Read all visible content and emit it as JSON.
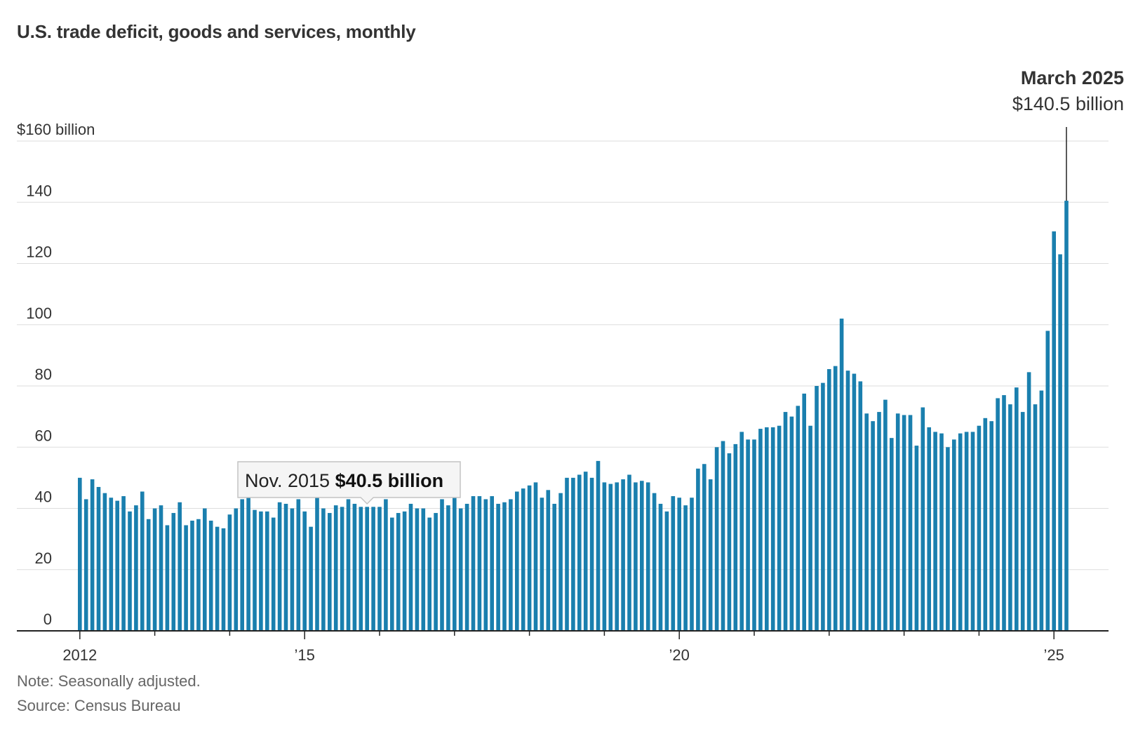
{
  "title": "U.S. trade deficit, goods and services, monthly",
  "note": "Note: Seasonally adjusted.",
  "source": "Source: Census Bureau",
  "colors": {
    "bar": "#1a7fae",
    "grid": "#dddddd",
    "axis": "#222222",
    "text": "#333333"
  },
  "chart_data": {
    "type": "bar",
    "title": "U.S. trade deficit, goods and services, monthly",
    "xlabel": "",
    "ylabel": "",
    "ylim": [
      0,
      160
    ],
    "yticks": [
      0,
      20,
      40,
      60,
      80,
      100,
      120,
      140,
      160
    ],
    "ytick_labels": [
      "0",
      "20",
      "40",
      "60",
      "80",
      "100",
      "120",
      "140",
      "$160 billion"
    ],
    "start": "2012-01",
    "xtick_labels": [
      {
        "index": 0,
        "label": "2012"
      },
      {
        "index": 36,
        "label": "’15"
      },
      {
        "index": 96,
        "label": "’20"
      },
      {
        "index": 156,
        "label": "’25"
      }
    ],
    "series": [
      {
        "name": "Trade deficit ($ billion)",
        "values": [
          50,
          43,
          49.5,
          47,
          45,
          43.5,
          42.5,
          44,
          39,
          41,
          45.5,
          36.5,
          40,
          41,
          34.5,
          38.5,
          42,
          34.5,
          36,
          36.5,
          40,
          36,
          34,
          33.5,
          38,
          40,
          43,
          43.5,
          39.5,
          39,
          39,
          37,
          42,
          41.5,
          40,
          43,
          39,
          34,
          44.5,
          40,
          38.5,
          41,
          40.5,
          43,
          41.5,
          40.5,
          40.5,
          40.5,
          40.5,
          43,
          37,
          38.5,
          39,
          41.5,
          40,
          40,
          37,
          38.5,
          43,
          41,
          43.5,
          40,
          41.5,
          44,
          44,
          43,
          44,
          41.5,
          42,
          43,
          45.5,
          46.5,
          47.5,
          48.5,
          43.5,
          46,
          41.5,
          45,
          50,
          50,
          51,
          52,
          50,
          55.5,
          48.5,
          48,
          48.5,
          49.5,
          51,
          48.5,
          49,
          48.5,
          45,
          41.5,
          39,
          44,
          43.5,
          41,
          43.5,
          53,
          54.5,
          49.5,
          60,
          62,
          58,
          61,
          65,
          62.5,
          62.5,
          66,
          66.5,
          66.5,
          67,
          71.5,
          70,
          73.5,
          77.5,
          67,
          80,
          81,
          85.5,
          86.5,
          102,
          85,
          84,
          81.5,
          71,
          68.5,
          71.5,
          75.5,
          63,
          71,
          70.5,
          70.5,
          60.5,
          73,
          66.5,
          65,
          64.5,
          60,
          62.5,
          64.5,
          65,
          65,
          67,
          69.5,
          68.5,
          76,
          77,
          74,
          79.5,
          71.5,
          84.5,
          74,
          78.5,
          98,
          130.5,
          123,
          140.5
        ]
      }
    ],
    "annotation": {
      "index": 158,
      "date": "March 2025",
      "value_label": "$140.5 billion"
    },
    "tooltip": {
      "index": 46,
      "date": "Nov. 2015",
      "value_label": "$40.5 billion"
    }
  }
}
